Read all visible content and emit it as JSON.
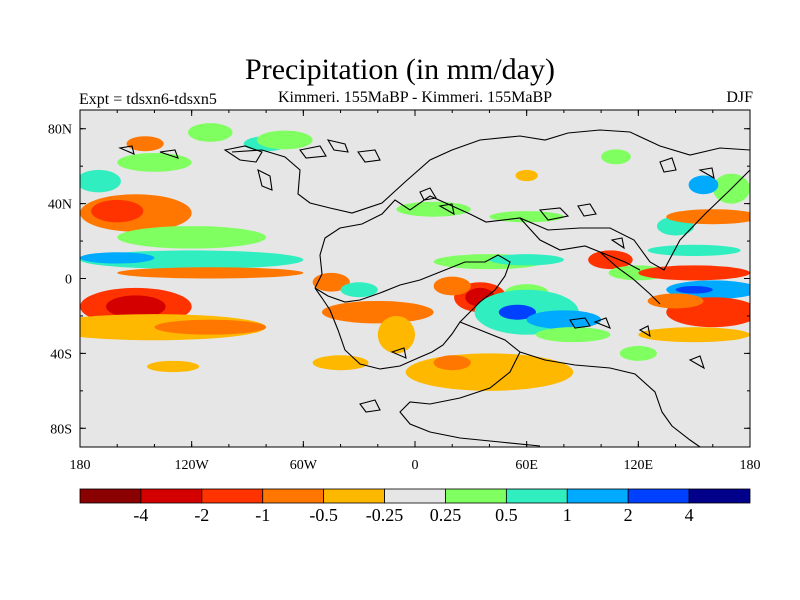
{
  "title": "Precipitation (in mm/day)",
  "subtitle_left": "Expt = tdsxn6-tdsxn5",
  "subtitle_center": "Kimmeri. 155MaBP - Kimmeri. 155MaBP",
  "subtitle_right": "DJF",
  "colors": {
    "background": "#e6e6e6",
    "bins": [
      "#8b0000",
      "#d40000",
      "#ff3300",
      "#ff7700",
      "#ffb800",
      "#e6e6e6",
      "#80ff60",
      "#30eec0",
      "#00aaff",
      "#0040ff",
      "#00008b"
    ]
  },
  "map_data": {
    "type": "filled-contour",
    "projection": "cylindrical-equidistant",
    "lon_range": [
      -180,
      180
    ],
    "lat_range": [
      -90,
      90
    ],
    "x_ticks": [
      {
        "value": -180,
        "label": "180"
      },
      {
        "value": -120,
        "label": "120W"
      },
      {
        "value": -60,
        "label": "60W"
      },
      {
        "value": 0,
        "label": "0"
      },
      {
        "value": 60,
        "label": "60E"
      },
      {
        "value": 120,
        "label": "120E"
      },
      {
        "value": 180,
        "label": "180"
      }
    ],
    "y_ticks": [
      {
        "value": 80,
        "label": "80N"
      },
      {
        "value": 40,
        "label": "40N"
      },
      {
        "value": 0,
        "label": "0"
      },
      {
        "value": -40,
        "label": "40S"
      },
      {
        "value": -80,
        "label": "80S"
      }
    ],
    "colorbar_labels": [
      "-4",
      "-2",
      "-1",
      "-0.5",
      "-0.25",
      "0.25",
      "0.5",
      "1",
      "2",
      "4"
    ],
    "colorbar_levels": [
      -4,
      -2,
      -1,
      -0.5,
      -0.25,
      0.25,
      0.5,
      1,
      2,
      4
    ],
    "blobs": [
      {
        "lon": -150,
        "lat": -15,
        "rx": 30,
        "ry": 10,
        "bin": 2
      },
      {
        "lon": -150,
        "lat": -15,
        "rx": 16,
        "ry": 6,
        "bin": 1
      },
      {
        "lon": -140,
        "lat": -26,
        "rx": 60,
        "ry": 7,
        "bin": 4
      },
      {
        "lon": -110,
        "lat": -26,
        "rx": 30,
        "ry": 4,
        "bin": 3
      },
      {
        "lon": -150,
        "lat": 35,
        "rx": 30,
        "ry": 10,
        "bin": 3
      },
      {
        "lon": -160,
        "lat": 36,
        "rx": 14,
        "ry": 6,
        "bin": 2
      },
      {
        "lon": -120,
        "lat": 22,
        "rx": 40,
        "ry": 6,
        "bin": 6
      },
      {
        "lon": -120,
        "lat": 10,
        "rx": 60,
        "ry": 5,
        "bin": 7
      },
      {
        "lon": -160,
        "lat": 11,
        "rx": 20,
        "ry": 3,
        "bin": 8
      },
      {
        "lon": -110,
        "lat": 3,
        "rx": 50,
        "ry": 3,
        "bin": 3
      },
      {
        "lon": -140,
        "lat": 62,
        "rx": 20,
        "ry": 5,
        "bin": 6
      },
      {
        "lon": -145,
        "lat": 72,
        "rx": 10,
        "ry": 4,
        "bin": 3
      },
      {
        "lon": -170,
        "lat": 52,
        "rx": 12,
        "ry": 6,
        "bin": 7
      },
      {
        "lon": -110,
        "lat": 78,
        "rx": 12,
        "ry": 5,
        "bin": 6
      },
      {
        "lon": -80,
        "lat": 72,
        "rx": 12,
        "ry": 4,
        "bin": 7
      },
      {
        "lon": -45,
        "lat": -2,
        "rx": 10,
        "ry": 5,
        "bin": 3
      },
      {
        "lon": -30,
        "lat": -6,
        "rx": 10,
        "ry": 4,
        "bin": 7
      },
      {
        "lon": -20,
        "lat": -18,
        "rx": 30,
        "ry": 6,
        "bin": 3
      },
      {
        "lon": -10,
        "lat": -30,
        "rx": 10,
        "ry": 10,
        "bin": 4
      },
      {
        "lon": -40,
        "lat": -45,
        "rx": 15,
        "ry": 4,
        "bin": 4
      },
      {
        "lon": -130,
        "lat": -47,
        "rx": 14,
        "ry": 3,
        "bin": 4
      },
      {
        "lon": 35,
        "lat": -10,
        "rx": 14,
        "ry": 8,
        "bin": 2
      },
      {
        "lon": 35,
        "lat": -10,
        "rx": 8,
        "ry": 5,
        "bin": 1
      },
      {
        "lon": 20,
        "lat": -4,
        "rx": 10,
        "ry": 5,
        "bin": 3
      },
      {
        "lon": 60,
        "lat": -8,
        "rx": 12,
        "ry": 5,
        "bin": 6
      },
      {
        "lon": 60,
        "lat": -18,
        "rx": 28,
        "ry": 12,
        "bin": 7
      },
      {
        "lon": 55,
        "lat": -18,
        "rx": 10,
        "ry": 4,
        "bin": 9
      },
      {
        "lon": 80,
        "lat": -22,
        "rx": 20,
        "ry": 5,
        "bin": 8
      },
      {
        "lon": 40,
        "lat": -50,
        "rx": 45,
        "ry": 10,
        "bin": 4
      },
      {
        "lon": 20,
        "lat": -45,
        "rx": 10,
        "ry": 4,
        "bin": 3
      },
      {
        "lon": 85,
        "lat": -30,
        "rx": 20,
        "ry": 4,
        "bin": 6
      },
      {
        "lon": 40,
        "lat": 9,
        "rx": 30,
        "ry": 4,
        "bin": 6
      },
      {
        "lon": 60,
        "lat": 10,
        "rx": 20,
        "ry": 3,
        "bin": 7
      },
      {
        "lon": 105,
        "lat": 10,
        "rx": 12,
        "ry": 5,
        "bin": 2
      },
      {
        "lon": 120,
        "lat": 3,
        "rx": 16,
        "ry": 4,
        "bin": 6
      },
      {
        "lon": 150,
        "lat": 3,
        "rx": 30,
        "ry": 4,
        "bin": 2
      },
      {
        "lon": 160,
        "lat": -6,
        "rx": 25,
        "ry": 5,
        "bin": 8
      },
      {
        "lon": 150,
        "lat": -6,
        "rx": 10,
        "ry": 2,
        "bin": 9
      },
      {
        "lon": 160,
        "lat": -18,
        "rx": 25,
        "ry": 8,
        "bin": 2
      },
      {
        "lon": 140,
        "lat": -12,
        "rx": 15,
        "ry": 4,
        "bin": 3
      },
      {
        "lon": 150,
        "lat": -30,
        "rx": 30,
        "ry": 4,
        "bin": 4
      },
      {
        "lon": 120,
        "lat": -40,
        "rx": 10,
        "ry": 4,
        "bin": 6
      },
      {
        "lon": 150,
        "lat": 15,
        "rx": 25,
        "ry": 3,
        "bin": 7
      },
      {
        "lon": 140,
        "lat": 28,
        "rx": 10,
        "ry": 5,
        "bin": 7
      },
      {
        "lon": 160,
        "lat": 33,
        "rx": 25,
        "ry": 4,
        "bin": 3
      },
      {
        "lon": 170,
        "lat": 48,
        "rx": 10,
        "ry": 8,
        "bin": 6
      },
      {
        "lon": 155,
        "lat": 50,
        "rx": 8,
        "ry": 5,
        "bin": 8
      },
      {
        "lon": 10,
        "lat": 37,
        "rx": 20,
        "ry": 4,
        "bin": 6
      },
      {
        "lon": 60,
        "lat": 33,
        "rx": 20,
        "ry": 3,
        "bin": 6
      },
      {
        "lon": -70,
        "lat": 74,
        "rx": 15,
        "ry": 5,
        "bin": 6
      },
      {
        "lon": 108,
        "lat": 65,
        "rx": 8,
        "ry": 4,
        "bin": 6
      },
      {
        "lon": 60,
        "lat": 55,
        "rx": 6,
        "ry": 3,
        "bin": 4
      }
    ]
  }
}
